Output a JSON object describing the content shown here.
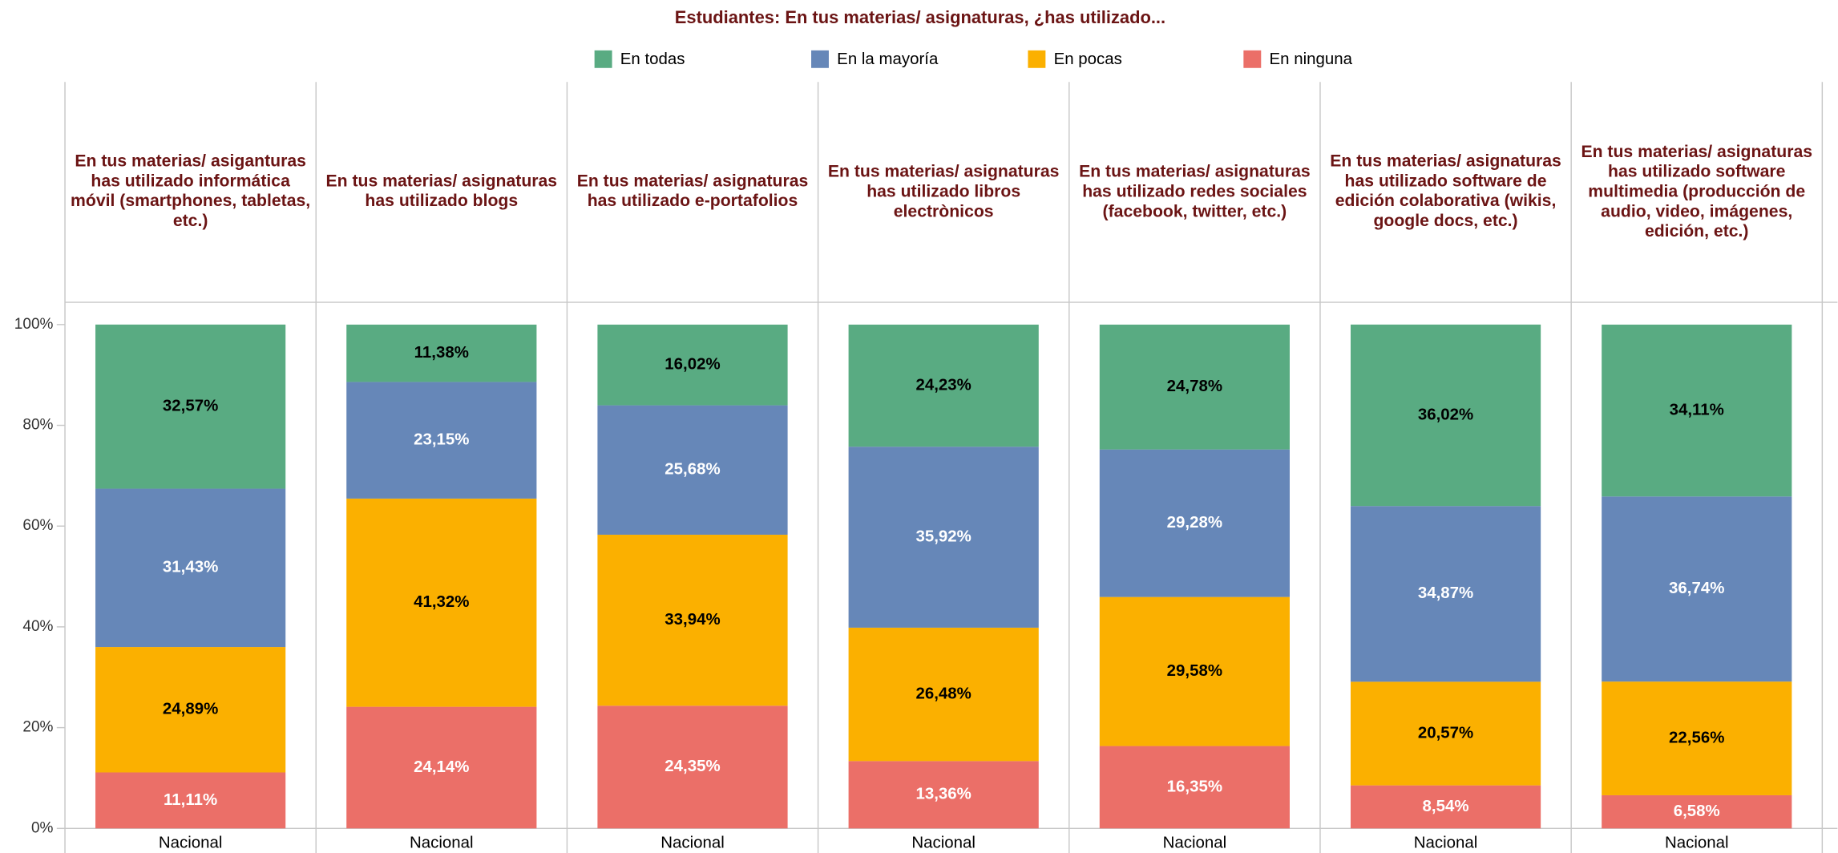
{
  "chart_data": {
    "type": "stacked_bar_100",
    "title": "Estudiantes: En tus materias/ asignaturas, ¿has utilizado...",
    "categories": [
      "En tus materias/ asiganturas has utilizado informática móvil (smartphones, tabletas, etc.)",
      "En tus materias/ asignaturas has utilizado blogs",
      "En tus materias/ asignaturas has utilizado e-portafolios",
      "En tus materias/ asignaturas has utilizado libros electrònicos",
      "En tus materias/ asignaturas has utilizado redes sociales (facebook, twitter, etc.)",
      "En tus materias/ asignaturas has utilizado software de edición colaborativa (wikis, google docs, etc.)",
      "En tus materias/ asignaturas has utilizado software multimedia (producción de audio, video, imágenes, edición, etc.)"
    ],
    "subcategory": "Nacional",
    "series": [
      {
        "name": "En todas",
        "color": "#59ab82",
        "label_color": "#000000",
        "values": [
          32.57,
          11.38,
          16.02,
          24.23,
          24.78,
          36.02,
          34.11
        ],
        "value_labels": [
          "32,57%",
          "11,38%",
          "16,02%",
          "24,23%",
          "24,78%",
          "36,02%",
          "34,11%"
        ]
      },
      {
        "name": "En la mayoría",
        "color": "#6687b8",
        "label_color": "#ffffff",
        "values": [
          31.43,
          23.15,
          25.68,
          35.92,
          29.28,
          34.87,
          36.74
        ],
        "value_labels": [
          "31,43%",
          "23,15%",
          "25,68%",
          "35,92%",
          "29,28%",
          "34,87%",
          "36,74%"
        ]
      },
      {
        "name": "En pocas",
        "color": "#fbb000",
        "label_color": "#000000",
        "values": [
          24.89,
          41.32,
          33.94,
          26.48,
          29.58,
          20.57,
          22.56
        ],
        "value_labels": [
          "24,89%",
          "41,32%",
          "33,94%",
          "26,48%",
          "29,58%",
          "20,57%",
          "22,56%"
        ]
      },
      {
        "name": "En ninguna",
        "color": "#eb6f68",
        "label_color": "#ffffff",
        "values": [
          11.11,
          24.14,
          24.35,
          13.36,
          16.35,
          8.54,
          6.58
        ],
        "value_labels": [
          "11,11%",
          "24,14%",
          "24,35%",
          "13,36%",
          "16,35%",
          "8,54%",
          "6,58%"
        ]
      }
    ],
    "ylim": [
      0,
      100
    ],
    "yticks": [
      {
        "value": 0,
        "label": "0%"
      },
      {
        "value": 20,
        "label": "20%"
      },
      {
        "value": 40,
        "label": "40%"
      },
      {
        "value": 60,
        "label": "60%"
      },
      {
        "value": 80,
        "label": "80%"
      },
      {
        "value": 100,
        "label": "100%"
      }
    ],
    "legend": "top"
  }
}
